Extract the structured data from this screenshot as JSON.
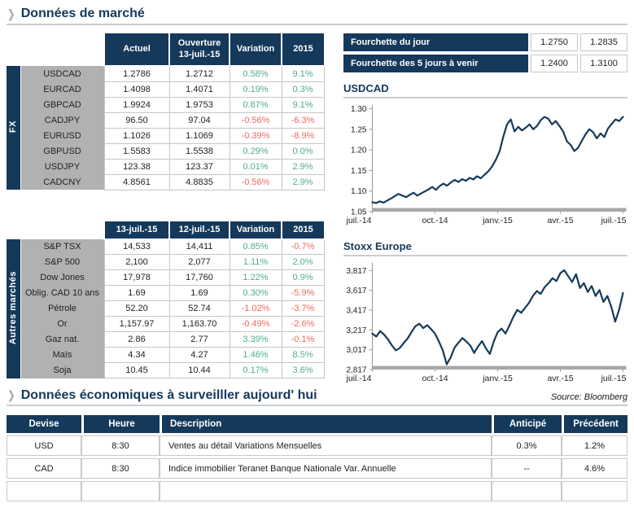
{
  "page": {
    "section1_title": "Données de marché",
    "section2_title": "Données économiques à surveilller aujourd' hui",
    "source": "Source: Bloomberg",
    "chevron_char": "❯"
  },
  "colors": {
    "navy": "#15395B",
    "green": "#4FAE84",
    "red": "#F2685C",
    "label_gray": "#B1B1B3",
    "rule_gray": "#C9CDD1",
    "cell_border_gray": "#C6C6C6",
    "axis_bar_gray": "#A8A8A8"
  },
  "fx_table": {
    "group_label": "FX",
    "columns": [
      "Actuel",
      "Ouverture\n13-juil.-15",
      "Variation",
      "2015"
    ],
    "rows": [
      {
        "label": "USDCAD",
        "values": [
          "1.2786",
          "1.2712",
          "0.58%",
          "9.1%"
        ]
      },
      {
        "label": "EURCAD",
        "values": [
          "1.4098",
          "1.4071",
          "0.19%",
          "0.3%"
        ]
      },
      {
        "label": "GBPCAD",
        "values": [
          "1.9924",
          "1.9753",
          "0.87%",
          "9.1%"
        ]
      },
      {
        "label": "CADJPY",
        "values": [
          "96.50",
          "97.04",
          "-0.56%",
          "-6.3%"
        ]
      },
      {
        "label": "EURUSD",
        "values": [
          "1.1026",
          "1.1069",
          "-0.39%",
          "-8.9%"
        ]
      },
      {
        "label": "GBPUSD",
        "values": [
          "1.5583",
          "1.5538",
          "0.29%",
          "0.0%"
        ]
      },
      {
        "label": "USDJPY",
        "values": [
          "123.38",
          "123.37",
          "0.01%",
          "2.9%"
        ]
      },
      {
        "label": "CADCNY",
        "values": [
          "4.8561",
          "4.8835",
          "-0.56%",
          "2.9%"
        ]
      }
    ]
  },
  "markets_table": {
    "group_label": "Autres marchés",
    "columns": [
      "13-juil.-15",
      "12-juil.-15",
      "Variation",
      "2015"
    ],
    "rows": [
      {
        "label": "S&P TSX",
        "values": [
          "14,533",
          "14,411",
          "0.85%",
          "-0.7%"
        ]
      },
      {
        "label": "S&P 500",
        "values": [
          "2,100",
          "2,077",
          "1.11%",
          "2.0%"
        ]
      },
      {
        "label": "Dow Jones",
        "values": [
          "17,978",
          "17,760",
          "1.22%",
          "0.9%"
        ]
      },
      {
        "label": "Oblig. CAD 10 ans",
        "values": [
          "1.69",
          "1.69",
          "0.30%",
          "-5.9%"
        ]
      },
      {
        "label": "Pétrole",
        "values": [
          "52.20",
          "52.74",
          "-1.02%",
          "-3.7%"
        ]
      },
      {
        "label": "Or",
        "values": [
          "1,157.97",
          "1,163.70",
          "-0.49%",
          "-2.6%"
        ]
      },
      {
        "label": "Gaz nat.",
        "values": [
          "2.86",
          "2.77",
          "3.39%",
          "-0.1%"
        ]
      },
      {
        "label": "Maïs",
        "values": [
          "4.34",
          "4.27",
          "1.46%",
          "8.5%"
        ]
      },
      {
        "label": "Soja",
        "values": [
          "10.45",
          "10.44",
          "0.17%",
          "3.6%"
        ]
      }
    ]
  },
  "range_table": {
    "rows": [
      {
        "label": "Fourchette du jour",
        "low": "1.2750",
        "high": "1.2835"
      },
      {
        "label": "Fourchette des 5 jours à venir",
        "low": "1.2400",
        "high": "1.3100"
      }
    ]
  },
  "econ_table": {
    "columns": [
      "Devise",
      "Heure",
      "Description",
      "Anticipé",
      "Précédent"
    ],
    "rows": [
      {
        "devise": "USD",
        "heure": "8:30",
        "description": "Ventes au détail Variations Mensuelles",
        "anticipe": "0.3%",
        "precedent": "1.2%"
      },
      {
        "devise": "CAD",
        "heure": "8:30",
        "description": "Indice immobilier Teranet Banque Nationale Var. Annuelle",
        "anticipe": "--",
        "precedent": "4.6%"
      },
      {
        "devise": "",
        "heure": "",
        "description": "",
        "anticipe": "",
        "precedent": ""
      }
    ]
  },
  "chart_data": [
    {
      "type": "line",
      "title": "USDCAD",
      "xlabel": "",
      "ylabel": "",
      "ylim": [
        1.05,
        1.305
      ],
      "yticks": [
        1.05,
        1.1,
        1.15,
        1.2,
        1.25,
        1.3
      ],
      "ytick_labels": [
        "1.05",
        "1.10",
        "1.15",
        "1.20",
        "1.25",
        "1.30"
      ],
      "xlim": [
        0,
        12
      ],
      "xticks": [
        0,
        3,
        6,
        9,
        12
      ],
      "xtick_labels": [
        "juil.-14",
        "oct.-14",
        "janv.-15",
        "avr.-15",
        "juil.-15"
      ],
      "x_unit": "months from juil.-14 to juil.-15, points evenly spaced",
      "grid": false,
      "legend": false,
      "y": [
        1.073,
        1.071,
        1.075,
        1.072,
        1.077,
        1.082,
        1.088,
        1.093,
        1.089,
        1.085,
        1.091,
        1.096,
        1.089,
        1.094,
        1.099,
        1.104,
        1.11,
        1.103,
        1.112,
        1.118,
        1.113,
        1.121,
        1.127,
        1.122,
        1.129,
        1.125,
        1.132,
        1.128,
        1.136,
        1.131,
        1.14,
        1.148,
        1.16,
        1.176,
        1.196,
        1.232,
        1.262,
        1.274,
        1.245,
        1.256,
        1.247,
        1.254,
        1.262,
        1.25,
        1.258,
        1.272,
        1.28,
        1.276,
        1.262,
        1.27,
        1.258,
        1.245,
        1.221,
        1.212,
        1.197,
        1.205,
        1.222,
        1.238,
        1.25,
        1.243,
        1.228,
        1.24,
        1.231,
        1.252,
        1.263,
        1.274,
        1.27,
        1.28
      ]
    },
    {
      "type": "line",
      "title": "Stoxx Europe",
      "xlabel": "",
      "ylabel": "",
      "ylim": [
        2817,
        3877
      ],
      "yticks": [
        2817,
        3017,
        3217,
        3417,
        3617,
        3817
      ],
      "ytick_labels": [
        "2,817",
        "3,017",
        "3,217",
        "3,417",
        "3,617",
        "3,817"
      ],
      "xlim": [
        0,
        12
      ],
      "xticks": [
        0,
        3,
        6,
        9,
        12
      ],
      "xtick_labels": [
        "juil.-14",
        "oct.-14",
        "janv.-15",
        "avr.-15",
        "juil.-15"
      ],
      "x_unit": "months from juil.-14 to juil.-15, points evenly spaced",
      "grid": false,
      "legend": false,
      "y": [
        3180,
        3150,
        3205,
        3170,
        3120,
        3060,
        3010,
        3035,
        3085,
        3130,
        3195,
        3255,
        3280,
        3235,
        3265,
        3225,
        3180,
        3100,
        3010,
        2870,
        2940,
        3040,
        3090,
        3135,
        3100,
        3060,
        2985,
        3050,
        3105,
        3030,
        2975,
        3100,
        3195,
        3230,
        3180,
        3260,
        3350,
        3420,
        3390,
        3440,
        3490,
        3560,
        3610,
        3580,
        3650,
        3690,
        3740,
        3710,
        3790,
        3820,
        3760,
        3700,
        3780,
        3640,
        3690,
        3600,
        3660,
        3560,
        3620,
        3500,
        3560,
        3450,
        3300,
        3420,
        3590
      ]
    }
  ]
}
